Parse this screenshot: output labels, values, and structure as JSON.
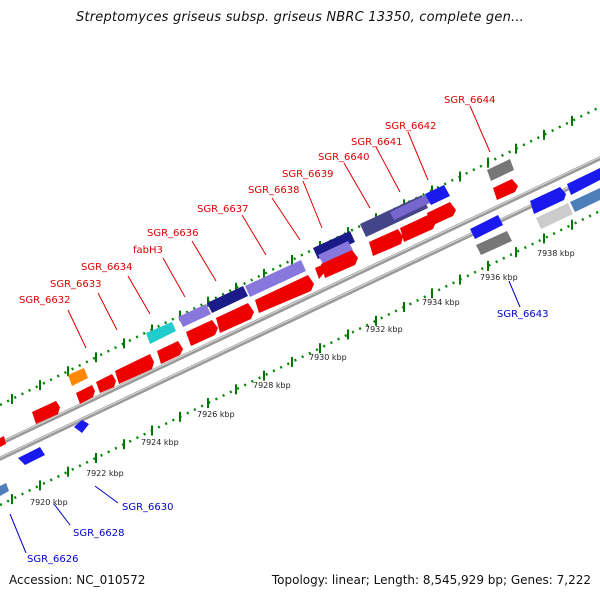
{
  "header": {
    "title": "Streptomyces griseus subsp. griseus NBRC 13350, complete gen..."
  },
  "footer": {
    "accession": "Accession: NC_010572",
    "summary": "Topology: linear; Length: 8,545,929 bp; Genes: 7,222"
  },
  "colors": {
    "forward_label": "#dd0000",
    "reverse_label": "#0000cc",
    "backbone": "#888888",
    "tick": "#006600"
  },
  "ruler": {
    "ticks": [
      "7920 kbp",
      "7922 kbp",
      "7924 kbp",
      "7926 kbp",
      "7928 kbp",
      "7930 kbp",
      "7932 kbp",
      "7934 kbp",
      "7936 kbp",
      "7938 kbp"
    ]
  },
  "gene_labels": [
    {
      "name": "SGR_6626",
      "strand": "reverse"
    },
    {
      "name": "SGR_6628",
      "strand": "reverse"
    },
    {
      "name": "SGR_6630",
      "strand": "reverse"
    },
    {
      "name": "SGR_6632",
      "strand": "forward"
    },
    {
      "name": "SGR_6633",
      "strand": "forward"
    },
    {
      "name": "SGR_6634",
      "strand": "forward"
    },
    {
      "name": "fabH3",
      "strand": "forward"
    },
    {
      "name": "SGR_6636",
      "strand": "forward"
    },
    {
      "name": "SGR_6637",
      "strand": "forward"
    },
    {
      "name": "SGR_6638",
      "strand": "forward"
    },
    {
      "name": "SGR_6639",
      "strand": "forward"
    },
    {
      "name": "SGR_6640",
      "strand": "forward"
    },
    {
      "name": "SGR_6641",
      "strand": "forward"
    },
    {
      "name": "SGR_6642",
      "strand": "forward"
    },
    {
      "name": "SGR_6643",
      "strand": "reverse"
    },
    {
      "name": "SGR_6644",
      "strand": "forward"
    }
  ],
  "feature_colors": {
    "cds": "#ee0000",
    "blue": "#1a1aee",
    "lavender": "#8877dd",
    "navy": "#1a1a88",
    "teal": "#22cccc",
    "orange": "#ff8800",
    "gray": "#777777",
    "lightgray": "#cccccc",
    "steel": "#4d7fbb"
  }
}
